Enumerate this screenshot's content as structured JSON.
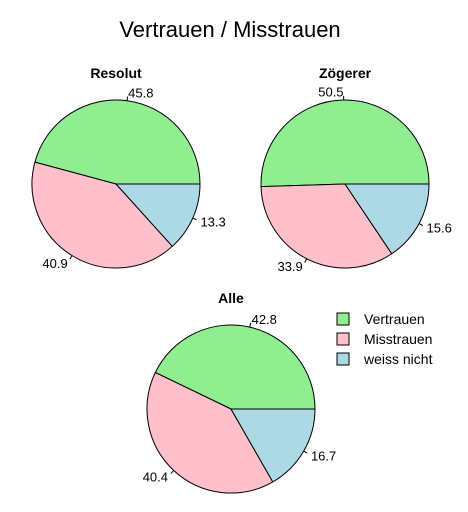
{
  "title": "Vertrauen / Misstrauen",
  "colors": {
    "Vertrauen": "#90ee90",
    "Misstrauen": "#ffc0cb",
    "weiss nicht": "#add8e6"
  },
  "chart_data": [
    {
      "type": "pie",
      "title": "Resolut",
      "categories": [
        "Vertrauen",
        "Misstrauen",
        "weiss nicht"
      ],
      "values": [
        45.8,
        40.9,
        13.3
      ]
    },
    {
      "type": "pie",
      "title": "Zögerer",
      "categories": [
        "Vertrauen",
        "Misstrauen",
        "weiss nicht"
      ],
      "values": [
        50.5,
        33.9,
        15.6
      ]
    },
    {
      "type": "pie",
      "title": "Alle",
      "categories": [
        "Vertrauen",
        "Misstrauen",
        "weiss nicht"
      ],
      "values": [
        42.8,
        40.4,
        16.7
      ]
    }
  ],
  "legend": {
    "placement": "right of bottom pie",
    "items": [
      "Vertrauen",
      "Misstrauen",
      "weiss nicht"
    ]
  }
}
